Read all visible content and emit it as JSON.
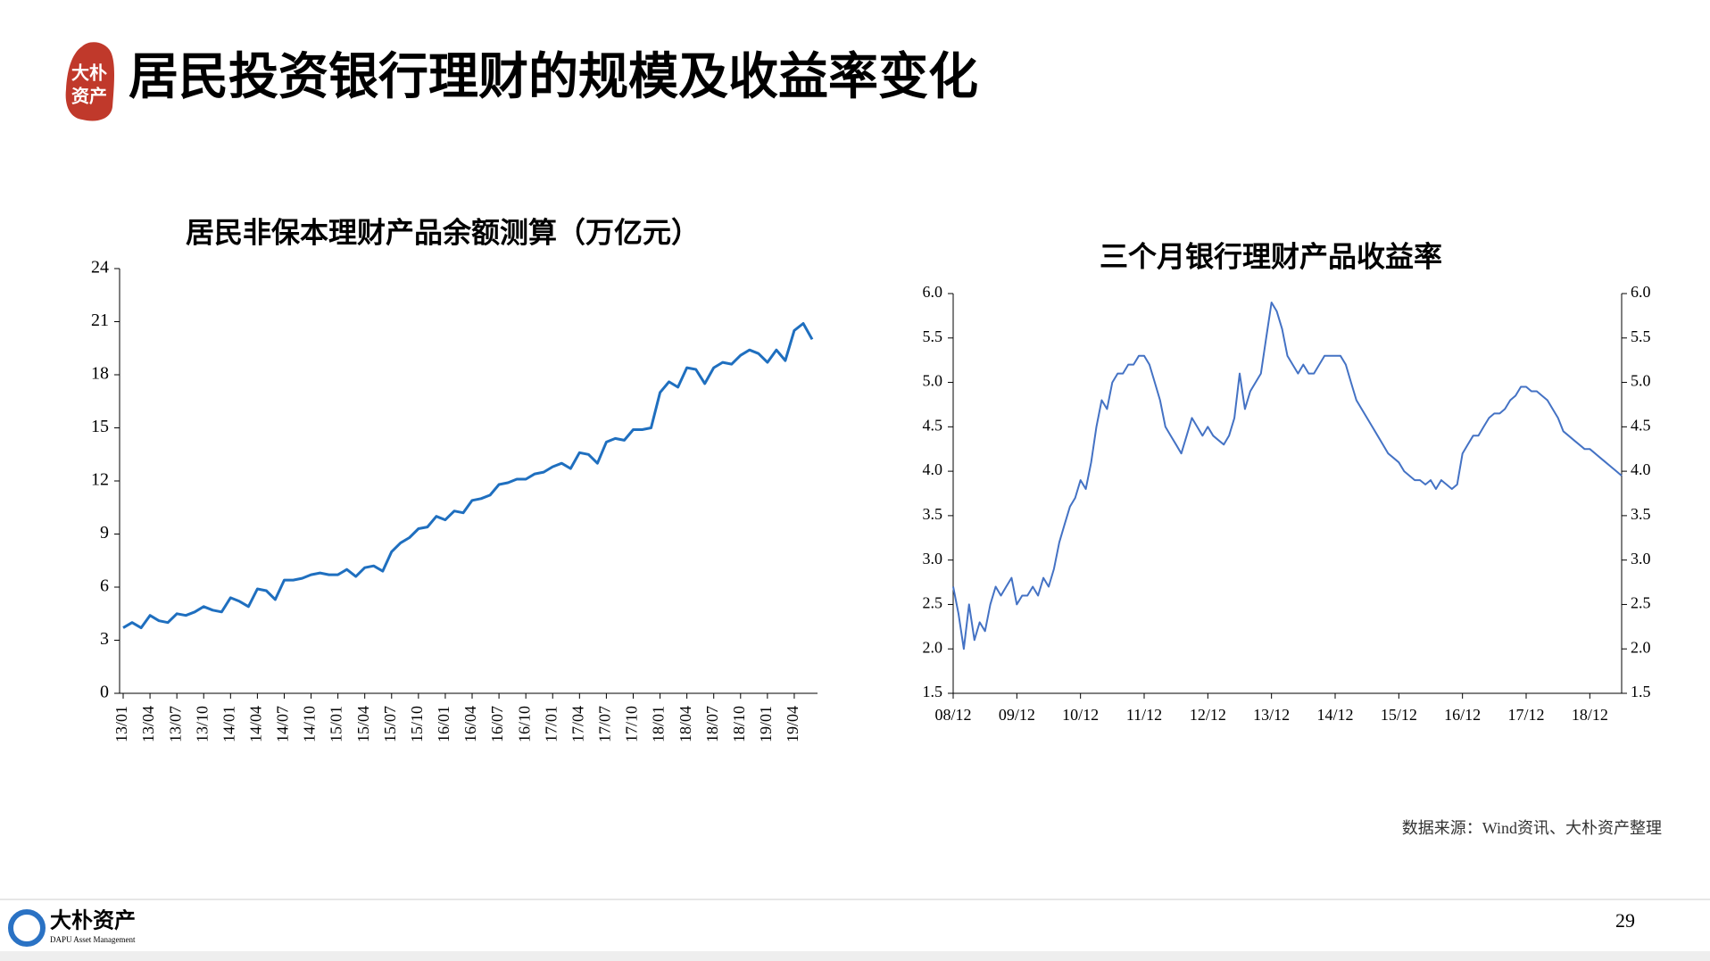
{
  "header": {
    "title": "居民投资银行理财的规模及收益率变化",
    "logo_top": "大朴",
    "logo_bottom": "资产"
  },
  "chart_data": [
    {
      "type": "line",
      "title": "居民非保本理财产品余额测算（万亿元）",
      "color": "#1f6fbf",
      "categories": [
        "13/01",
        null,
        null,
        "13/04",
        null,
        null,
        "13/07",
        null,
        null,
        "13/10",
        null,
        null,
        "14/01",
        null,
        null,
        "14/04",
        null,
        null,
        "14/07",
        null,
        null,
        "14/10",
        null,
        null,
        "15/01",
        null,
        null,
        "15/04",
        null,
        null,
        "15/07",
        null,
        null,
        "15/10",
        null,
        null,
        "16/01",
        null,
        null,
        "16/04",
        null,
        null,
        "16/07",
        null,
        null,
        "16/10",
        null,
        null,
        "17/01",
        null,
        null,
        "17/04",
        null,
        null,
        "17/07",
        null,
        null,
        "17/10",
        null,
        null,
        "18/01",
        null,
        null,
        "18/04",
        null,
        null,
        "18/07",
        null,
        null,
        "18/10",
        null,
        null,
        "19/01",
        null,
        null,
        "19/04",
        null,
        null
      ],
      "values": [
        3.7,
        4.0,
        3.7,
        4.4,
        4.1,
        4.0,
        4.5,
        4.4,
        4.6,
        4.9,
        4.7,
        4.6,
        5.4,
        5.2,
        4.9,
        5.9,
        5.8,
        5.3,
        6.4,
        6.4,
        6.5,
        6.7,
        6.8,
        6.7,
        6.7,
        7.0,
        6.6,
        7.1,
        7.2,
        6.9,
        8.0,
        8.5,
        8.8,
        9.3,
        9.4,
        10.0,
        9.8,
        10.3,
        10.2,
        10.9,
        11.0,
        11.2,
        11.8,
        11.9,
        12.1,
        12.1,
        12.4,
        12.5,
        12.8,
        13.0,
        12.7,
        13.6,
        13.5,
        13.0,
        14.2,
        14.4,
        14.3,
        14.9,
        14.9,
        15.0,
        17.0,
        17.6,
        17.3,
        18.4,
        18.3,
        17.5,
        18.4,
        18.7,
        18.6,
        19.1,
        19.4,
        19.2,
        18.7,
        19.4,
        18.8,
        20.5,
        20.9,
        20.0
      ],
      "ylim": [
        0,
        24
      ],
      "yticks": [
        0,
        3,
        6,
        9,
        12,
        15,
        18,
        21,
        24
      ]
    },
    {
      "type": "line",
      "title": "三个月银行理财产品收益率",
      "color": "#4472c4",
      "categories": [
        "08/12",
        null,
        null,
        null,
        null,
        null,
        null,
        null,
        null,
        null,
        null,
        null,
        "09/12",
        null,
        null,
        null,
        null,
        null,
        null,
        null,
        null,
        null,
        null,
        null,
        "10/12",
        null,
        null,
        null,
        null,
        null,
        null,
        null,
        null,
        null,
        null,
        null,
        "11/12",
        null,
        null,
        null,
        null,
        null,
        null,
        null,
        null,
        null,
        null,
        null,
        "12/12",
        null,
        null,
        null,
        null,
        null,
        null,
        null,
        null,
        null,
        null,
        null,
        "13/12",
        null,
        null,
        null,
        null,
        null,
        null,
        null,
        null,
        null,
        null,
        null,
        "14/12",
        null,
        null,
        null,
        null,
        null,
        null,
        null,
        null,
        null,
        null,
        null,
        "15/12",
        null,
        null,
        null,
        null,
        null,
        null,
        null,
        null,
        null,
        null,
        null,
        "16/12",
        null,
        null,
        null,
        null,
        null,
        null,
        null,
        null,
        null,
        null,
        null,
        "17/12",
        null,
        null,
        null,
        null,
        null,
        null,
        null,
        null,
        null,
        null,
        null,
        "18/12",
        null,
        null,
        null,
        null,
        null,
        null
      ],
      "values": [
        2.7,
        2.4,
        2.0,
        2.5,
        2.1,
        2.3,
        2.2,
        2.5,
        2.7,
        2.6,
        2.7,
        2.8,
        2.5,
        2.6,
        2.6,
        2.7,
        2.6,
        2.8,
        2.7,
        2.9,
        3.2,
        3.4,
        3.6,
        3.7,
        3.9,
        3.8,
        4.1,
        4.5,
        4.8,
        4.7,
        5.0,
        5.1,
        5.1,
        5.2,
        5.2,
        5.3,
        5.3,
        5.2,
        5.0,
        4.8,
        4.5,
        4.4,
        4.3,
        4.2,
        4.4,
        4.6,
        4.5,
        4.4,
        4.5,
        4.4,
        4.35,
        4.3,
        4.4,
        4.6,
        5.1,
        4.7,
        4.9,
        5.0,
        5.1,
        5.5,
        5.9,
        5.8,
        5.6,
        5.3,
        5.2,
        5.1,
        5.2,
        5.1,
        5.1,
        5.2,
        5.3,
        5.3,
        5.3,
        5.3,
        5.2,
        5.0,
        4.8,
        4.7,
        4.6,
        4.5,
        4.4,
        4.3,
        4.2,
        4.15,
        4.1,
        4.0,
        3.95,
        3.9,
        3.9,
        3.85,
        3.9,
        3.8,
        3.9,
        3.85,
        3.8,
        3.85,
        4.2,
        4.3,
        4.4,
        4.4,
        4.5,
        4.6,
        4.65,
        4.65,
        4.7,
        4.8,
        4.85,
        4.95,
        4.95,
        4.9,
        4.9,
        4.85,
        4.8,
        4.7,
        4.6,
        4.45,
        4.4,
        4.35,
        4.3,
        4.25,
        4.25,
        4.2,
        4.15,
        4.1,
        4.05,
        4.0,
        3.95
      ],
      "ylim": [
        1.5,
        6.0
      ],
      "yticks": [
        1.5,
        {
          "value": 2,
          "label": "2.0"
        },
        2.5,
        {
          "value": 3,
          "label": "3.0"
        },
        3.5,
        {
          "value": 4,
          "label": "4.0"
        },
        4.5,
        {
          "value": 5,
          "label": "5.0"
        },
        5.5,
        {
          "value": 6,
          "label": "6.0"
        }
      ],
      "y2lim": [
        1.5,
        6.0
      ],
      "y2ticks": [
        1.5,
        {
          "value": 2,
          "label": "2.0"
        },
        2.5,
        {
          "value": 3,
          "label": "3.0"
        },
        3.5,
        {
          "value": 4,
          "label": "4.0"
        },
        4.5,
        {
          "value": 5,
          "label": "5.0"
        },
        5.5,
        {
          "value": 6,
          "label": "6.0"
        }
      ]
    }
  ],
  "source": "数据来源：Wind资讯、大朴资产整理",
  "footer": {
    "brand": "大朴资产",
    "brand_en": "DAPU Asset Management",
    "page": "29"
  }
}
